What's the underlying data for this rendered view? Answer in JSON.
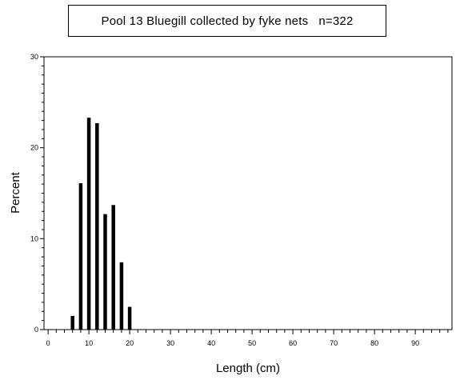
{
  "chart_data": {
    "type": "bar",
    "title": "Pool 13 Bluegill collected by fyke nets   n=322",
    "xlabel": "Length (cm)",
    "ylabel": "Percent",
    "xlim": [
      -1,
      99
    ],
    "ylim": [
      0,
      30
    ],
    "x_ticks": [
      "0",
      "10",
      "20",
      "30",
      "40",
      "50",
      "60",
      "70",
      "80",
      "90"
    ],
    "y_ticks": [
      "0",
      "10",
      "20",
      "30"
    ],
    "x": [
      6,
      8,
      10,
      12,
      14,
      16,
      18,
      20
    ],
    "values": [
      1.5,
      16.1,
      23.3,
      22.7,
      12.7,
      13.7,
      7.4,
      2.5
    ],
    "grid": false,
    "bar_color": "#000000"
  }
}
